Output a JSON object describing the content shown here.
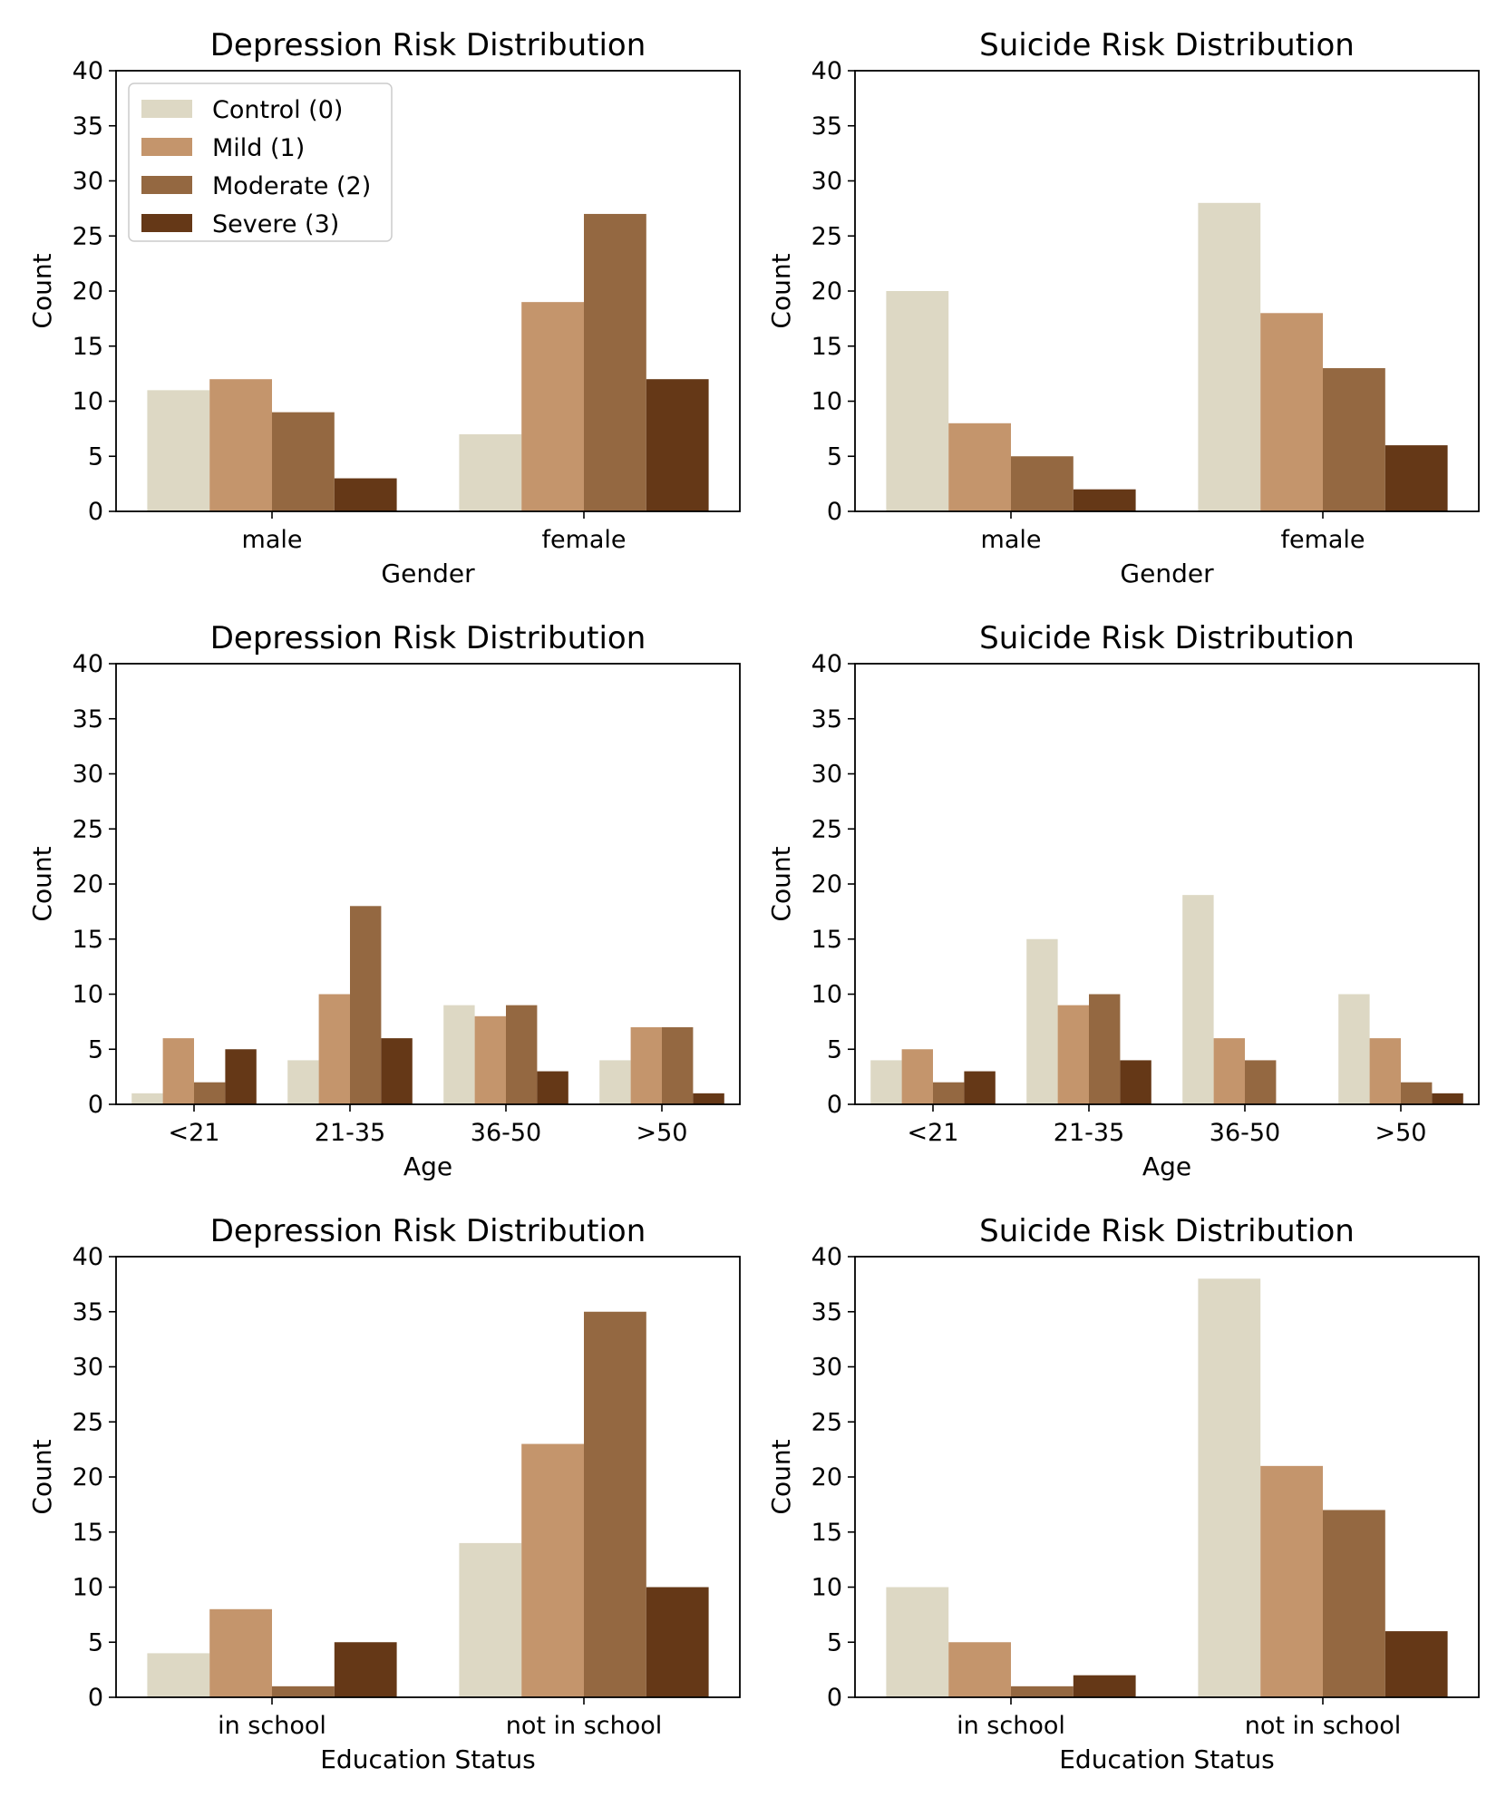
{
  "series_names": [
    "Control (0)",
    "Mild (1)",
    "Moderate (2)",
    "Severe (3)"
  ],
  "colors": [
    "#ddd8c4",
    "#c4956c",
    "#946841",
    "#653817"
  ],
  "chart_data": [
    {
      "type": "bar",
      "title": "Depression Risk Distribution",
      "xlabel": "Gender",
      "ylabel": "Count",
      "ylim": [
        0,
        40
      ],
      "yticks": [
        "0",
        "5",
        "10",
        "15",
        "20",
        "25",
        "30",
        "35",
        "40"
      ],
      "categories": [
        "male",
        "female"
      ],
      "series": [
        {
          "name": "Control (0)",
          "values": [
            11,
            7
          ]
        },
        {
          "name": "Mild (1)",
          "values": [
            12,
            19
          ]
        },
        {
          "name": "Moderate (2)",
          "values": [
            9,
            27
          ]
        },
        {
          "name": "Severe (3)",
          "values": [
            3,
            12
          ]
        }
      ],
      "legend": "upper-left"
    },
    {
      "type": "bar",
      "title": "Suicide Risk Distribution",
      "xlabel": "Gender",
      "ylabel": "Count",
      "ylim": [
        0,
        40
      ],
      "yticks": [
        "0",
        "5",
        "10",
        "15",
        "20",
        "25",
        "30",
        "35",
        "40"
      ],
      "categories": [
        "male",
        "female"
      ],
      "series": [
        {
          "name": "Control (0)",
          "values": [
            20,
            28
          ]
        },
        {
          "name": "Mild (1)",
          "values": [
            8,
            18
          ]
        },
        {
          "name": "Moderate (2)",
          "values": [
            5,
            13
          ]
        },
        {
          "name": "Severe (3)",
          "values": [
            2,
            6
          ]
        }
      ]
    },
    {
      "type": "bar",
      "title": "Depression Risk Distribution",
      "xlabel": "Age",
      "ylabel": "Count",
      "ylim": [
        0,
        40
      ],
      "yticks": [
        "0",
        "5",
        "10",
        "15",
        "20",
        "25",
        "30",
        "35",
        "40"
      ],
      "categories": [
        "<21",
        "21-35",
        "36-50",
        ">50"
      ],
      "series": [
        {
          "name": "Control (0)",
          "values": [
            1,
            4,
            9,
            4
          ]
        },
        {
          "name": "Mild (1)",
          "values": [
            6,
            10,
            8,
            7
          ]
        },
        {
          "name": "Moderate (2)",
          "values": [
            2,
            18,
            9,
            7
          ]
        },
        {
          "name": "Severe (3)",
          "values": [
            5,
            6,
            3,
            1
          ]
        }
      ]
    },
    {
      "type": "bar",
      "title": "Suicide Risk Distribution",
      "xlabel": "Age",
      "ylabel": "Count",
      "ylim": [
        0,
        40
      ],
      "yticks": [
        "0",
        "5",
        "10",
        "15",
        "20",
        "25",
        "30",
        "35",
        "40"
      ],
      "categories": [
        "<21",
        "21-35",
        "36-50",
        ">50"
      ],
      "series": [
        {
          "name": "Control (0)",
          "values": [
            4,
            15,
            19,
            10
          ]
        },
        {
          "name": "Mild (1)",
          "values": [
            5,
            9,
            6,
            6
          ]
        },
        {
          "name": "Moderate (2)",
          "values": [
            2,
            10,
            4,
            2
          ]
        },
        {
          "name": "Severe (3)",
          "values": [
            3,
            4,
            0,
            1
          ]
        }
      ]
    },
    {
      "type": "bar",
      "title": "Depression Risk Distribution",
      "xlabel": "Education Status",
      "ylabel": "Count",
      "ylim": [
        0,
        40
      ],
      "yticks": [
        "0",
        "5",
        "10",
        "15",
        "20",
        "25",
        "30",
        "35",
        "40"
      ],
      "categories": [
        "in school",
        "not in school"
      ],
      "series": [
        {
          "name": "Control (0)",
          "values": [
            4,
            14
          ]
        },
        {
          "name": "Mild (1)",
          "values": [
            8,
            23
          ]
        },
        {
          "name": "Moderate (2)",
          "values": [
            1,
            35
          ]
        },
        {
          "name": "Severe (3)",
          "values": [
            5,
            10
          ]
        }
      ]
    },
    {
      "type": "bar",
      "title": "Suicide Risk Distribution",
      "xlabel": "Education Status",
      "ylabel": "Count",
      "ylim": [
        0,
        40
      ],
      "yticks": [
        "0",
        "5",
        "10",
        "15",
        "20",
        "25",
        "30",
        "35",
        "40"
      ],
      "categories": [
        "in school",
        "not in school"
      ],
      "series": [
        {
          "name": "Control (0)",
          "values": [
            10,
            38
          ]
        },
        {
          "name": "Mild (1)",
          "values": [
            5,
            21
          ]
        },
        {
          "name": "Moderate (2)",
          "values": [
            1,
            17
          ]
        },
        {
          "name": "Severe (3)",
          "values": [
            2,
            6
          ]
        }
      ]
    }
  ]
}
